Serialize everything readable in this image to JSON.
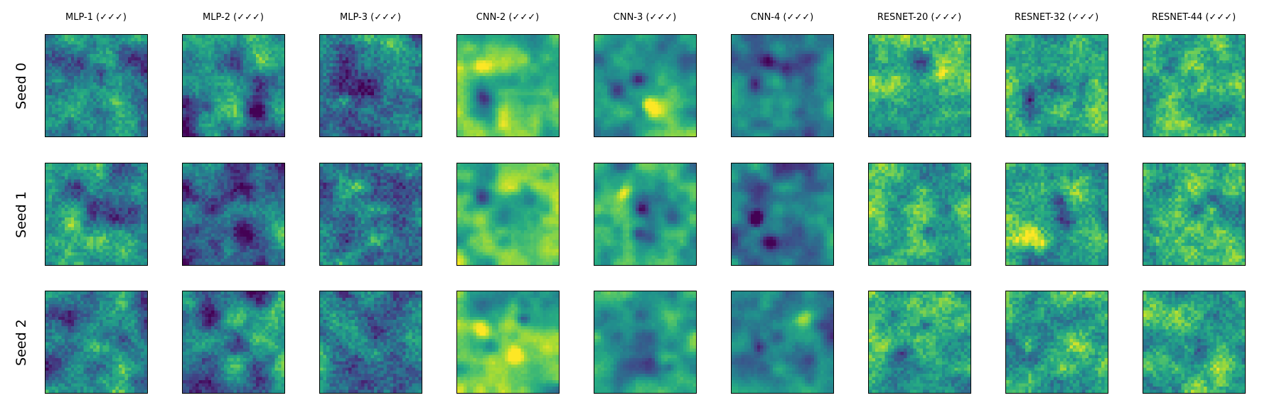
{
  "figure": {
    "columns": [
      {
        "label": "MLP-1 (✓✓✓)"
      },
      {
        "label": "MLP-2 (✓✓✓)"
      },
      {
        "label": "MLP-3 (✓✓✓)"
      },
      {
        "label": "CNN-2 (✓✓✓)"
      },
      {
        "label": "CNN-3 (✓✓✓)"
      },
      {
        "label": "CNN-4 (✓✓✓)"
      },
      {
        "label": "RESNET-20 (✓✓✓)"
      },
      {
        "label": "RESNET-32 (✓✓✓)"
      },
      {
        "label": "RESNET-44 (✓✓✓)"
      }
    ],
    "rows": [
      {
        "label": "Seed 0"
      },
      {
        "label": "Seed 1"
      },
      {
        "label": "Seed 2"
      }
    ],
    "colormap": "viridis",
    "colors": {
      "frame": "#000000",
      "background": "#ffffff"
    }
  }
}
